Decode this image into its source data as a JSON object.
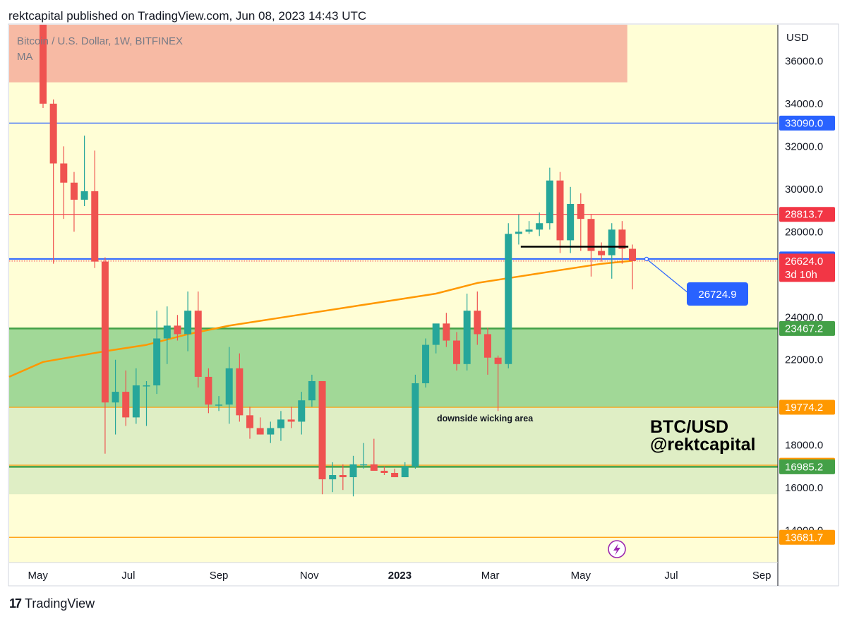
{
  "header": {
    "published": "rektcapital published on TradingView.com, Jun 08, 2023 14:43 UTC"
  },
  "footer": {
    "brand": "TradingView"
  },
  "chart_data": {
    "type": "candlestick",
    "symbol_line": "Bitcoin / U.S. Dollar, 1W, BITFINEX",
    "indicator_line": "MA",
    "currency": "USD",
    "y_range": [
      12500,
      37700
    ],
    "y_ticks": [
      "36000.0",
      "34000.0",
      "32000.0",
      "30000.0",
      "28000.0",
      "24000.0",
      "22000.0",
      "18000.0",
      "16000.0",
      "14000.0"
    ],
    "x_ticks": [
      {
        "label": "May",
        "i": -0.5,
        "bold": false
      },
      {
        "label": "Jul",
        "i": 8.25,
        "bold": false
      },
      {
        "label": "Sep",
        "i": 17.0,
        "bold": false
      },
      {
        "label": "Nov",
        "i": 25.75,
        "bold": false
      },
      {
        "label": "2023",
        "i": 34.5,
        "bold": true
      },
      {
        "label": "Mar",
        "i": 43.25,
        "bold": false
      },
      {
        "label": "May",
        "i": 52.0,
        "bold": false
      },
      {
        "label": "Jul",
        "i": 60.75,
        "bold": false
      },
      {
        "label": "Sep",
        "i": 69.5,
        "bold": false
      }
    ],
    "candles": [
      [
        39500,
        40500,
        33800,
        34000
      ],
      [
        34000,
        34200,
        26500,
        31200
      ],
      [
        31200,
        32000,
        28600,
        30300
      ],
      [
        30300,
        30800,
        28000,
        29500
      ],
      [
        29500,
        32500,
        29200,
        29900
      ],
      [
        29900,
        31800,
        26300,
        26600
      ],
      [
        26600,
        26800,
        17600,
        20000
      ],
      [
        20000,
        22000,
        18500,
        20500
      ],
      [
        20500,
        21500,
        18900,
        19300
      ],
      [
        19300,
        21600,
        19000,
        20800
      ],
      [
        20800,
        21000,
        18900,
        20800
      ],
      [
        20800,
        24300,
        20400,
        23000
      ],
      [
        23000,
        24500,
        21800,
        23600
      ],
      [
        23600,
        24100,
        22900,
        23200
      ],
      [
        23200,
        25200,
        22400,
        24300
      ],
      [
        24300,
        25200,
        20700,
        21200
      ],
      [
        21200,
        21600,
        19500,
        19900
      ],
      [
        19900,
        20300,
        19600,
        19900
      ],
      [
        19900,
        22600,
        19000,
        21600
      ],
      [
        21600,
        22300,
        19100,
        19400
      ],
      [
        19400,
        19800,
        18300,
        18800
      ],
      [
        18800,
        19300,
        18500,
        18500
      ],
      [
        18500,
        19100,
        18100,
        18800
      ],
      [
        18800,
        19600,
        18200,
        19200
      ],
      [
        19200,
        19800,
        18800,
        19100
      ],
      [
        19100,
        20500,
        18500,
        20100
      ],
      [
        20100,
        21300,
        19800,
        21000
      ],
      [
        21000,
        21000,
        15700,
        16400
      ],
      [
        16400,
        17200,
        15800,
        16600
      ],
      [
        16600,
        17100,
        15900,
        16500
      ],
      [
        16500,
        17500,
        15600,
        17100
      ],
      [
        17100,
        18100,
        16900,
        17100
      ],
      [
        17100,
        18300,
        16800,
        16800
      ],
      [
        16800,
        17000,
        16600,
        16700
      ],
      [
        16700,
        16900,
        16500,
        16500
      ],
      [
        16500,
        17200,
        16500,
        17000
      ],
      [
        17000,
        21300,
        16900,
        20900
      ],
      [
        20900,
        23000,
        20700,
        22700
      ],
      [
        22700,
        23500,
        22300,
        23700
      ],
      [
        23700,
        24200,
        22600,
        22900
      ],
      [
        22900,
        23300,
        21500,
        21800
      ],
      [
        21800,
        25100,
        21500,
        24300
      ],
      [
        24300,
        25200,
        22700,
        23200
      ],
      [
        23200,
        23500,
        21300,
        22100
      ],
      [
        22100,
        22200,
        19600,
        21800
      ],
      [
        21800,
        28400,
        21600,
        27900
      ],
      [
        27900,
        28800,
        27400,
        28000
      ],
      [
        28000,
        28500,
        27900,
        28100
      ],
      [
        28100,
        28900,
        27800,
        28400
      ],
      [
        28400,
        31000,
        28100,
        30400
      ],
      [
        30400,
        30800,
        27000,
        27600
      ],
      [
        27600,
        30100,
        27000,
        29300
      ],
      [
        29300,
        29800,
        27100,
        28600
      ],
      [
        28600,
        28800,
        25900,
        27100
      ],
      [
        27100,
        27500,
        26600,
        26900
      ],
      [
        26900,
        28400,
        25800,
        28100
      ],
      [
        28100,
        28500,
        26500,
        27200
      ],
      [
        27200,
        27400,
        25300,
        26624
      ]
    ],
    "ma": [
      [
        -6,
        21200
      ],
      [
        0,
        21900
      ],
      [
        6,
        22400
      ],
      [
        10,
        22700
      ],
      [
        14,
        23200
      ],
      [
        18,
        23600
      ],
      [
        22,
        23900
      ],
      [
        26,
        24200
      ],
      [
        30,
        24500
      ],
      [
        34,
        24800
      ],
      [
        38,
        25100
      ],
      [
        42,
        25600
      ],
      [
        46,
        25900
      ],
      [
        50,
        26200
      ],
      [
        54,
        26500
      ],
      [
        57,
        26640
      ]
    ],
    "zones": [
      {
        "name": "red-resistance-zone",
        "from": 35000,
        "to": 37700,
        "x_to_i": 56.5,
        "color": "#f7baa4"
      },
      {
        "name": "green-support-zone",
        "from": 19774.2,
        "to": 23467.2,
        "color": "#a1d897"
      },
      {
        "name": "light-green-zone",
        "from": 15700,
        "to": 19774.2,
        "color": "#dfeec5"
      }
    ],
    "price_lines": [
      {
        "value": 33090.0,
        "label": "33090.0",
        "color": "#2962ff",
        "dotted": false
      },
      {
        "value": 28813.7,
        "label": "28813.7",
        "color": "#f23645",
        "dotted": false
      },
      {
        "value": 26724.9,
        "label": "26724.9",
        "color": "#2962ff",
        "dotted": false
      },
      {
        "value": 26624.0,
        "label": "26624.0",
        "color": "#f23645",
        "dotted": true
      },
      {
        "value": 23467.2,
        "label": "23467.2",
        "color": "#43a047",
        "dotted": false
      },
      {
        "value": 19774.2,
        "label": "19774.2",
        "color": "#ff9800",
        "dotted": false
      },
      {
        "value": 17061.1,
        "label": "17061.1",
        "color": "#ff9800",
        "dotted": false
      },
      {
        "value": 16985.2,
        "label": "16985.2",
        "color": "#43a047",
        "dotted": false
      },
      {
        "value": 13681.7,
        "label": "13681.7",
        "color": "#ff9800",
        "dotted": false
      }
    ],
    "countdown_label": "3d 10h",
    "black_level": {
      "value": 27300,
      "from_i": 46.2,
      "to_i": 56.6
    },
    "callout": {
      "label": "26724.9",
      "anchor_value": 26724.9
    },
    "annotation": "downside wicking area",
    "watermark": [
      "BTC/USD",
      "@rektcapital"
    ],
    "colors": {
      "up": "#26a69a",
      "down": "#ef5350",
      "ma": "#ff9800",
      "background": "#fffed6"
    }
  }
}
